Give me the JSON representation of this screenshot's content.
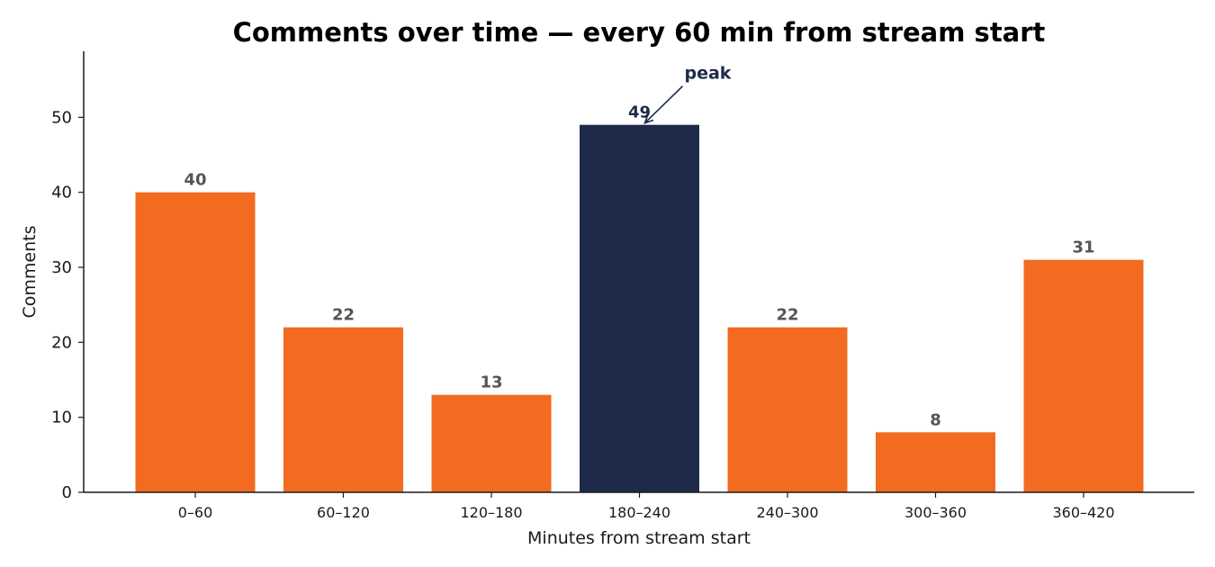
{
  "chart_data": {
    "type": "bar",
    "title": "Comments over time — every 60 min from stream start",
    "xlabel": "Minutes from stream start",
    "ylabel": "Comments",
    "categories": [
      "0–60",
      "60–120",
      "120–180",
      "180–240",
      "240–300",
      "300–360",
      "360–420"
    ],
    "values": [
      40,
      22,
      13,
      49,
      22,
      8,
      31
    ],
    "ylim": [
      0,
      58.8
    ],
    "yticks": [
      0,
      10,
      20,
      30,
      40,
      50
    ],
    "grid": false,
    "highlight_index": 3,
    "annotation": {
      "text": "peak",
      "category": "180–240",
      "value": 49
    },
    "colors": {
      "bar": "#F26B21",
      "highlight": "#1D2A4A",
      "data_label": "#555555",
      "highlight_label": "#1D2A4A",
      "axis": "#1a1a1a"
    }
  }
}
